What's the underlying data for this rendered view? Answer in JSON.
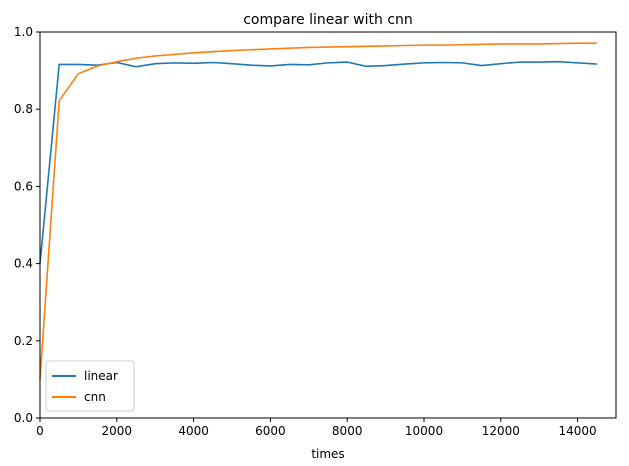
{
  "chart_data": {
    "type": "line",
    "title": "compare linear with cnn",
    "xlabel": "times",
    "ylabel": "",
    "xlim": [
      0,
      15000
    ],
    "ylim": [
      0.0,
      1.0
    ],
    "xticks": [
      0,
      2000,
      4000,
      6000,
      8000,
      10000,
      12000,
      14000
    ],
    "xtick_labels": [
      "0",
      "2000",
      "4000",
      "6000",
      "8000",
      "10000",
      "12000",
      "14000"
    ],
    "yticks": [
      0.0,
      0.2,
      0.4,
      0.6,
      0.8,
      1.0
    ],
    "ytick_labels": [
      "0.0",
      "0.2",
      "0.4",
      "0.6",
      "0.8",
      "1.0"
    ],
    "grid": false,
    "legend": "lower-left",
    "x": [
      0,
      500,
      1000,
      1500,
      2000,
      2500,
      3000,
      3500,
      4000,
      4500,
      5000,
      5500,
      6000,
      6500,
      7000,
      7500,
      8000,
      8500,
      9000,
      9500,
      10000,
      10500,
      11000,
      11500,
      12000,
      12500,
      13000,
      13500,
      14000,
      14500
    ],
    "series": [
      {
        "name": "linear",
        "color": "#1f77b4",
        "values": [
          0.4,
          0.916,
          0.916,
          0.914,
          0.921,
          0.91,
          0.918,
          0.92,
          0.919,
          0.921,
          0.918,
          0.914,
          0.912,
          0.916,
          0.915,
          0.92,
          0.922,
          0.911,
          0.913,
          0.917,
          0.92,
          0.921,
          0.92,
          0.913,
          0.918,
          0.922,
          0.922,
          0.923,
          0.92,
          0.917
        ]
      },
      {
        "name": "cnn",
        "color": "#ff7f0e",
        "values": [
          0.1,
          0.822,
          0.892,
          0.912,
          0.923,
          0.932,
          0.938,
          0.942,
          0.946,
          0.949,
          0.952,
          0.954,
          0.956,
          0.958,
          0.96,
          0.961,
          0.962,
          0.963,
          0.964,
          0.965,
          0.966,
          0.966,
          0.967,
          0.968,
          0.969,
          0.969,
          0.969,
          0.97,
          0.971,
          0.971
        ]
      }
    ]
  }
}
